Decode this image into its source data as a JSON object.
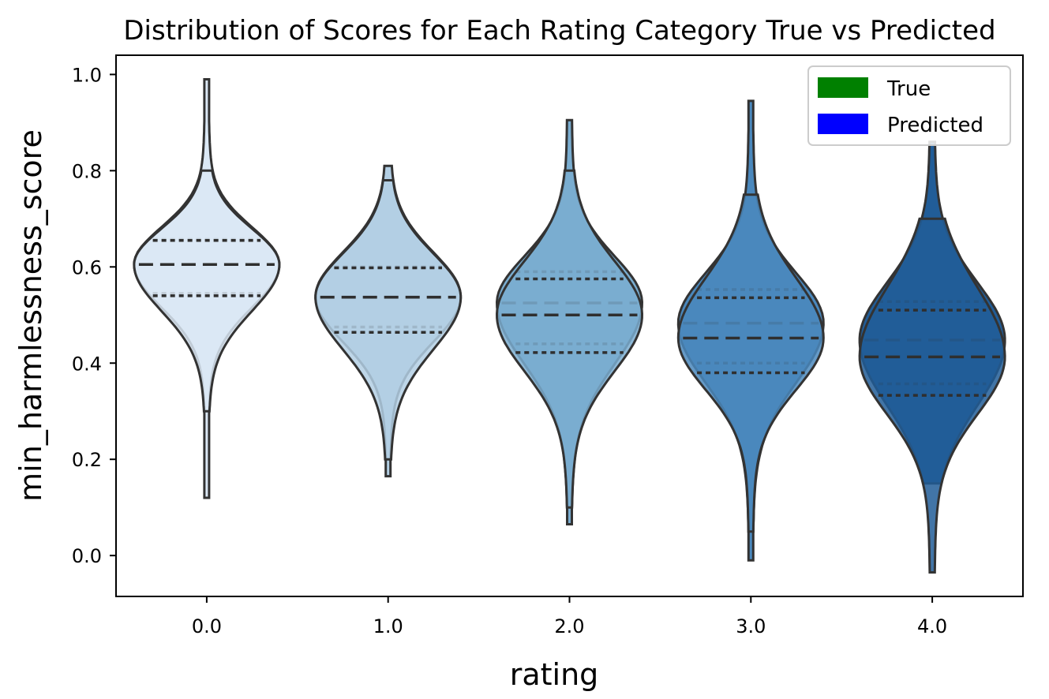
{
  "chart_data": {
    "type": "violin",
    "title": "Distribution of Scores for Each Rating Category True vs Predicted",
    "xlabel": "rating",
    "ylabel": "min_harmlessness_score",
    "xlim": [
      -0.5,
      4.5
    ],
    "ylim": [
      -0.085,
      1.04
    ],
    "xticks": [
      "0.0",
      "1.0",
      "2.0",
      "3.0",
      "4.0"
    ],
    "yticks": [
      "0.0",
      "0.2",
      "0.4",
      "0.6",
      "0.8",
      "1.0"
    ],
    "legend": {
      "position": "upper right",
      "entries": [
        {
          "label": "True",
          "color": "#008000"
        },
        {
          "label": "Predicted",
          "color": "#0000ff"
        }
      ]
    },
    "categories": [
      "0.0",
      "1.0",
      "2.0",
      "3.0",
      "4.0"
    ],
    "violin_colors": [
      "#dbe8f5",
      "#b3cfe4",
      "#7aadd0",
      "#4a88bd",
      "#215d98"
    ],
    "series": [
      {
        "name": "True",
        "groups": [
          {
            "min": 0.12,
            "max": 0.99,
            "q1": 0.545,
            "median": 0.605,
            "q3": 0.657
          },
          {
            "min": 0.165,
            "max": 0.81,
            "q1": 0.475,
            "median": 0.538,
            "q3": 0.6
          },
          {
            "min": 0.065,
            "max": 0.905,
            "q1": 0.44,
            "median": 0.525,
            "q3": 0.59
          },
          {
            "min": -0.01,
            "max": 0.945,
            "q1": 0.4,
            "median": 0.483,
            "q3": 0.553
          },
          {
            "min": 0.15,
            "max": 0.86,
            "q1": 0.357,
            "median": 0.448,
            "q3": 0.528
          }
        ]
      },
      {
        "name": "Predicted",
        "groups": [
          {
            "min": 0.3,
            "max": 0.8,
            "q1": 0.54,
            "median": 0.605,
            "q3": 0.655
          },
          {
            "min": 0.2,
            "max": 0.78,
            "q1": 0.464,
            "median": 0.537,
            "q3": 0.598
          },
          {
            "min": 0.1,
            "max": 0.8,
            "q1": 0.422,
            "median": 0.5,
            "q3": 0.575
          },
          {
            "min": 0.05,
            "max": 0.75,
            "q1": 0.38,
            "median": 0.452,
            "q3": 0.536
          },
          {
            "min": -0.035,
            "max": 0.7,
            "q1": 0.333,
            "median": 0.413,
            "q3": 0.51
          }
        ]
      }
    ]
  }
}
